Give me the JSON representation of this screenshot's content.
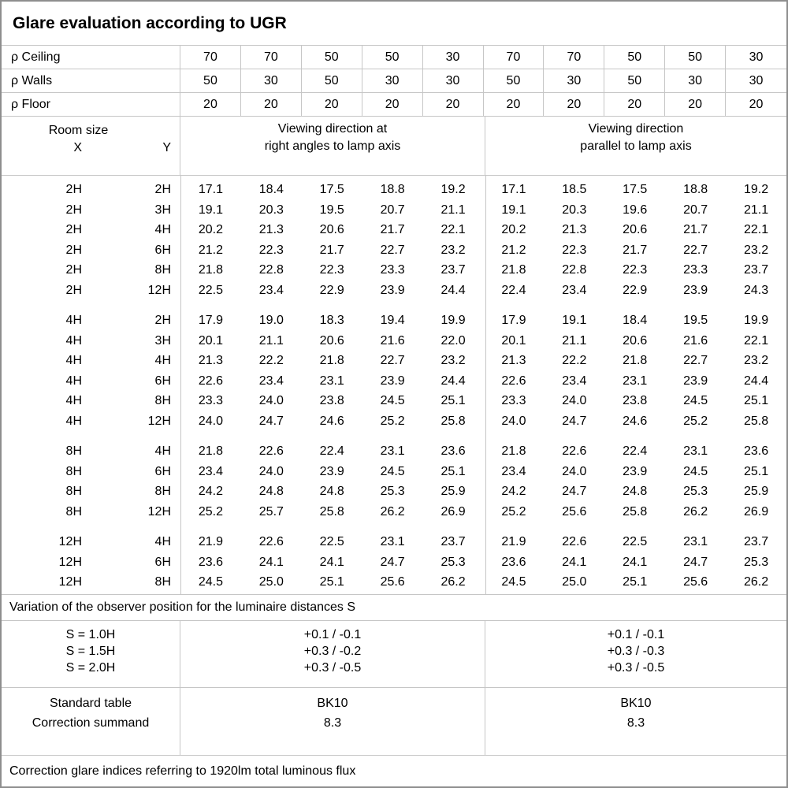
{
  "title": "Glare evaluation according to UGR",
  "reflectance": {
    "rows": [
      {
        "label": "ρ Ceiling",
        "values": [
          "70",
          "70",
          "50",
          "50",
          "30",
          "70",
          "70",
          "50",
          "50",
          "30"
        ]
      },
      {
        "label": "ρ Walls",
        "values": [
          "50",
          "30",
          "50",
          "30",
          "30",
          "50",
          "30",
          "50",
          "30",
          "30"
        ]
      },
      {
        "label": "ρ Floor",
        "values": [
          "20",
          "20",
          "20",
          "20",
          "20",
          "20",
          "20",
          "20",
          "20",
          "20"
        ]
      }
    ]
  },
  "header": {
    "room_size_label": "Room size",
    "x_label": "X",
    "y_label": "Y",
    "group1_lines": [
      "Viewing direction at",
      "right angles to lamp axis"
    ],
    "group2_lines": [
      "Viewing direction",
      "parallel to lamp axis"
    ]
  },
  "chart_data": {
    "type": "table",
    "title": "Glare evaluation according to UGR",
    "groups": [
      {
        "rows": [
          {
            "x": "2H",
            "y": "2H",
            "right_angles": [
              "17.1",
              "18.4",
              "17.5",
              "18.8",
              "19.2"
            ],
            "parallel": [
              "17.1",
              "18.5",
              "17.5",
              "18.8",
              "19.2"
            ]
          },
          {
            "x": "2H",
            "y": "3H",
            "right_angles": [
              "19.1",
              "20.3",
              "19.5",
              "20.7",
              "21.1"
            ],
            "parallel": [
              "19.1",
              "20.3",
              "19.6",
              "20.7",
              "21.1"
            ]
          },
          {
            "x": "2H",
            "y": "4H",
            "right_angles": [
              "20.2",
              "21.3",
              "20.6",
              "21.7",
              "22.1"
            ],
            "parallel": [
              "20.2",
              "21.3",
              "20.6",
              "21.7",
              "22.1"
            ]
          },
          {
            "x": "2H",
            "y": "6H",
            "right_angles": [
              "21.2",
              "22.3",
              "21.7",
              "22.7",
              "23.2"
            ],
            "parallel": [
              "21.2",
              "22.3",
              "21.7",
              "22.7",
              "23.2"
            ]
          },
          {
            "x": "2H",
            "y": "8H",
            "right_angles": [
              "21.8",
              "22.8",
              "22.3",
              "23.3",
              "23.7"
            ],
            "parallel": [
              "21.8",
              "22.8",
              "22.3",
              "23.3",
              "23.7"
            ]
          },
          {
            "x": "2H",
            "y": "12H",
            "right_angles": [
              "22.5",
              "23.4",
              "22.9",
              "23.9",
              "24.4"
            ],
            "parallel": [
              "22.4",
              "23.4",
              "22.9",
              "23.9",
              "24.3"
            ]
          }
        ]
      },
      {
        "rows": [
          {
            "x": "4H",
            "y": "2H",
            "right_angles": [
              "17.9",
              "19.0",
              "18.3",
              "19.4",
              "19.9"
            ],
            "parallel": [
              "17.9",
              "19.1",
              "18.4",
              "19.5",
              "19.9"
            ]
          },
          {
            "x": "4H",
            "y": "3H",
            "right_angles": [
              "20.1",
              "21.1",
              "20.6",
              "21.6",
              "22.0"
            ],
            "parallel": [
              "20.1",
              "21.1",
              "20.6",
              "21.6",
              "22.1"
            ]
          },
          {
            "x": "4H",
            "y": "4H",
            "right_angles": [
              "21.3",
              "22.2",
              "21.8",
              "22.7",
              "23.2"
            ],
            "parallel": [
              "21.3",
              "22.2",
              "21.8",
              "22.7",
              "23.2"
            ]
          },
          {
            "x": "4H",
            "y": "6H",
            "right_angles": [
              "22.6",
              "23.4",
              "23.1",
              "23.9",
              "24.4"
            ],
            "parallel": [
              "22.6",
              "23.4",
              "23.1",
              "23.9",
              "24.4"
            ]
          },
          {
            "x": "4H",
            "y": "8H",
            "right_angles": [
              "23.3",
              "24.0",
              "23.8",
              "24.5",
              "25.1"
            ],
            "parallel": [
              "23.3",
              "24.0",
              "23.8",
              "24.5",
              "25.1"
            ]
          },
          {
            "x": "4H",
            "y": "12H",
            "right_angles": [
              "24.0",
              "24.7",
              "24.6",
              "25.2",
              "25.8"
            ],
            "parallel": [
              "24.0",
              "24.7",
              "24.6",
              "25.2",
              "25.8"
            ]
          }
        ]
      },
      {
        "rows": [
          {
            "x": "8H",
            "y": "4H",
            "right_angles": [
              "21.8",
              "22.6",
              "22.4",
              "23.1",
              "23.6"
            ],
            "parallel": [
              "21.8",
              "22.6",
              "22.4",
              "23.1",
              "23.6"
            ]
          },
          {
            "x": "8H",
            "y": "6H",
            "right_angles": [
              "23.4",
              "24.0",
              "23.9",
              "24.5",
              "25.1"
            ],
            "parallel": [
              "23.4",
              "24.0",
              "23.9",
              "24.5",
              "25.1"
            ]
          },
          {
            "x": "8H",
            "y": "8H",
            "right_angles": [
              "24.2",
              "24.8",
              "24.8",
              "25.3",
              "25.9"
            ],
            "parallel": [
              "24.2",
              "24.7",
              "24.8",
              "25.3",
              "25.9"
            ]
          },
          {
            "x": "8H",
            "y": "12H",
            "right_angles": [
              "25.2",
              "25.7",
              "25.8",
              "26.2",
              "26.9"
            ],
            "parallel": [
              "25.2",
              "25.6",
              "25.8",
              "26.2",
              "26.9"
            ]
          }
        ]
      },
      {
        "rows": [
          {
            "x": "12H",
            "y": "4H",
            "right_angles": [
              "21.9",
              "22.6",
              "22.5",
              "23.1",
              "23.7"
            ],
            "parallel": [
              "21.9",
              "22.6",
              "22.5",
              "23.1",
              "23.7"
            ]
          },
          {
            "x": "12H",
            "y": "6H",
            "right_angles": [
              "23.6",
              "24.1",
              "24.1",
              "24.7",
              "25.3"
            ],
            "parallel": [
              "23.6",
              "24.1",
              "24.1",
              "24.7",
              "25.3"
            ]
          },
          {
            "x": "12H",
            "y": "8H",
            "right_angles": [
              "24.5",
              "25.0",
              "25.1",
              "25.6",
              "26.2"
            ],
            "parallel": [
              "24.5",
              "25.0",
              "25.1",
              "25.6",
              "26.2"
            ]
          }
        ]
      }
    ]
  },
  "variation_note": "Variation of the observer position for the luminaire distances S",
  "variation": {
    "labels": [
      "S = 1.0H",
      "S = 1.5H",
      "S = 2.0H"
    ],
    "right_angles": [
      "+0.1 / -0.1",
      "+0.3 / -0.2",
      "+0.3 / -0.5"
    ],
    "parallel": [
      "+0.1 / -0.1",
      "+0.3 / -0.3",
      "+0.3 / -0.5"
    ]
  },
  "standard": {
    "labels": [
      "Standard table",
      "Correction summand"
    ],
    "right_angles": [
      "BK10",
      "8.3"
    ],
    "parallel": [
      "BK10",
      "8.3"
    ]
  },
  "footer_note": "Correction glare indices referring to 1920lm total luminous flux"
}
